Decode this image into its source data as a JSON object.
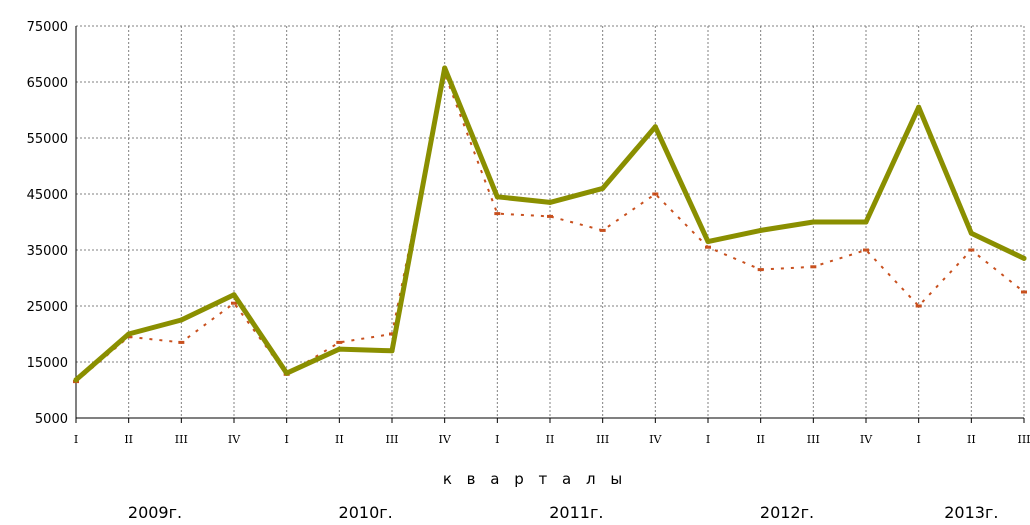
{
  "chart_data": {
    "type": "line",
    "title": "",
    "ylabel": "",
    "xlabel": "к в а р т а л ы",
    "ylim": [
      5000,
      75000
    ],
    "yticks": [
      5000,
      15000,
      25000,
      35000,
      45000,
      55000,
      65000,
      75000
    ],
    "ytick_labels": [
      "5000",
      "15000",
      "25000",
      "35000",
      "45000",
      "55000",
      "65000",
      "75000"
    ],
    "categories": [
      "I",
      "II",
      "III",
      "IV",
      "I",
      "II",
      "III",
      "IV",
      "I",
      "II",
      "III",
      "IV",
      "I",
      "II",
      "III",
      "IV",
      "I",
      "II",
      "III"
    ],
    "years": [
      {
        "label": "2009г.",
        "start": 0,
        "end": 3
      },
      {
        "label": "2010г.",
        "start": 4,
        "end": 7
      },
      {
        "label": "2011г.",
        "start": 8,
        "end": 11
      },
      {
        "label": "2012г.",
        "start": 12,
        "end": 15
      },
      {
        "label": "2013г.",
        "start": 16,
        "end": 18
      }
    ],
    "grid": true,
    "series": [
      {
        "values": [
          11800,
          20000,
          22500,
          27000,
          13000,
          17300,
          17000,
          67500,
          44500,
          43500,
          46000,
          57000,
          36500,
          38500,
          40000,
          40000,
          60500,
          38000,
          33500
        ],
        "color": "#8a8f00"
      },
      {
        "values": [
          11500,
          19500,
          18500,
          25500,
          12800,
          18500,
          20000,
          66500,
          41500,
          41000,
          38500,
          45000,
          35500,
          31500,
          32000,
          35000,
          25000,
          35000,
          27500
        ],
        "color": "#c8501e"
      }
    ]
  }
}
